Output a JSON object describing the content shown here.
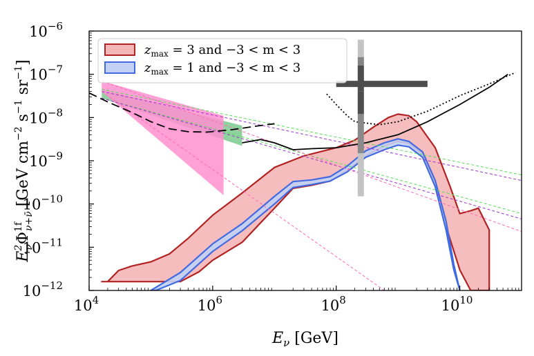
{
  "chart_data": {
    "type": "area",
    "title": "",
    "xlabel": "E_ν [GeV]",
    "ylabel": "E_ν² Φ^1f_{ν+ν̄} [GeV cm⁻² s⁻¹ sr⁻¹]",
    "xscale": "log",
    "yscale": "log",
    "xlim": [
      10000.0,
      100000000000.0
    ],
    "ylim": [
      1e-12,
      1e-06
    ],
    "x_ticks": [
      {
        "value": 10000.0,
        "base": "10",
        "exp": "4"
      },
      {
        "value": 1000000.0,
        "base": "10",
        "exp": "6"
      },
      {
        "value": 100000000.0,
        "base": "10",
        "exp": "8"
      },
      {
        "value": 10000000000.0,
        "base": "10",
        "exp": "10"
      }
    ],
    "y_ticks": [
      {
        "value": 1e-12,
        "base": "10",
        "exp": "−12"
      },
      {
        "value": 1e-11,
        "base": "10",
        "exp": "−11"
      },
      {
        "value": 1e-10,
        "base": "10",
        "exp": "−10"
      },
      {
        "value": 1e-09,
        "base": "10",
        "exp": "−9"
      },
      {
        "value": 1e-08,
        "base": "10",
        "exp": "−8"
      },
      {
        "value": 1e-07,
        "base": "10",
        "exp": "−7"
      },
      {
        "value": 1e-06,
        "base": "10",
        "exp": "−6"
      }
    ],
    "legend_position": "top-left",
    "series": [
      {
        "name": "z_max = 3 and −3 < m < 3",
        "kind": "band",
        "fill": "#f4b6b6",
        "stroke": "#b22222",
        "legend": {
          "var": "z",
          "sub": "max",
          "text": " = 3 and −3 < m < 3"
        },
        "upper": [
          [
            16000.0,
            1.6e-12
          ],
          [
            20000.0,
            1.6e-12
          ],
          [
            30000.0,
            2.9e-12
          ],
          [
            50000.0,
            3.7e-12
          ],
          [
            100000.0,
            4.6e-12
          ],
          [
            200000.0,
            7e-12
          ],
          [
            400000.0,
            1.6e-11
          ],
          [
            1000000.0,
            5.5e-11
          ],
          [
            3000000.0,
            1.8e-10
          ],
          [
            10000000.0,
            7e-10
          ],
          [
            30000000.0,
            1.3e-09
          ],
          [
            100000000.0,
            2e-09
          ],
          [
            200000000.0,
            3e-09
          ],
          [
            400000000.0,
            6e-09
          ],
          [
            700000000.0,
            1e-08
          ],
          [
            1000000000.0,
            1.2e-08
          ],
          [
            1500000000.0,
            1.1e-08
          ],
          [
            2000000000.0,
            8e-09
          ],
          [
            4000000000.0,
            2e-09
          ],
          [
            7000000000.0,
            2.5e-10
          ],
          [
            10000000000.0,
            6e-11
          ],
          [
            15000000000.0,
            7e-11
          ],
          [
            20000000000.0,
            8e-11
          ],
          [
            30000000000.0,
            2.5e-11
          ],
          [
            30000000000.0,
            1e-12
          ]
        ],
        "lower": [
          [
            16000.0,
            1.6e-12
          ],
          [
            100000.0,
            1.6e-12
          ],
          [
            300000.0,
            1.6e-12
          ],
          [
            600000.0,
            2.7e-12
          ],
          [
            1000000.0,
            5e-12
          ],
          [
            3000000.0,
            1.3e-11
          ],
          [
            10000000.0,
            8e-11
          ],
          [
            20000000.0,
            2.3e-10
          ],
          [
            40000000.0,
            2.7e-10
          ],
          [
            80000000.0,
            3.4e-10
          ],
          [
            150000000.0,
            6e-10
          ],
          [
            300000000.0,
            1.3e-09
          ],
          [
            600000000.0,
            2.2e-09
          ],
          [
            1000000000.0,
            2.8e-09
          ],
          [
            1500000000.0,
            2.5e-09
          ],
          [
            2500000000.0,
            1.4e-09
          ],
          [
            4000000000.0,
            3e-10
          ],
          [
            6000000000.0,
            3e-11
          ],
          [
            10000000000.0,
            3e-12
          ],
          [
            15000000000.0,
            1e-12
          ],
          [
            20000000000.0,
            1e-12
          ]
        ]
      },
      {
        "name": "z_max = 1 and −3 < m < 3",
        "kind": "band",
        "fill": "#c3d2f4",
        "stroke": "#4169e1",
        "legend": {
          "var": "z",
          "sub": "max",
          "text": " = 1 and −3 < m < 3"
        },
        "upper": [
          [
            100000.0,
            1e-12
          ],
          [
            300000.0,
            2.6e-12
          ],
          [
            1000000.0,
            1.2e-11
          ],
          [
            3000000.0,
            3.5e-11
          ],
          [
            10000000.0,
            1.5e-10
          ],
          [
            20000000.0,
            3.3e-10
          ],
          [
            40000000.0,
            3.6e-10
          ],
          [
            80000000.0,
            4.3e-10
          ],
          [
            150000000.0,
            7.5e-10
          ],
          [
            300000000.0,
            1.7e-09
          ],
          [
            600000000.0,
            2.6e-09
          ],
          [
            1000000000.0,
            3.2e-09
          ],
          [
            1500000000.0,
            2.8e-09
          ],
          [
            2500000000.0,
            1.6e-09
          ],
          [
            4000000000.0,
            3.5e-10
          ],
          [
            6000000000.0,
            4e-11
          ],
          [
            8000000000.0,
            4e-12
          ],
          [
            10000000000.0,
            1e-12
          ]
        ],
        "lower": [
          [
            120000.0,
            1e-12
          ],
          [
            300000.0,
            1.7e-12
          ],
          [
            1000000.0,
            8e-12
          ],
          [
            3000000.0,
            2.4e-11
          ],
          [
            10000000.0,
            1e-10
          ],
          [
            20000000.0,
            2.4e-10
          ],
          [
            40000000.0,
            2.8e-10
          ],
          [
            80000000.0,
            3.4e-10
          ],
          [
            150000000.0,
            5.5e-10
          ],
          [
            300000000.0,
            1.2e-09
          ],
          [
            600000000.0,
            1.8e-09
          ],
          [
            1000000000.0,
            2.3e-09
          ],
          [
            1500000000.0,
            2.1e-09
          ],
          [
            2500000000.0,
            1.2e-09
          ],
          [
            4000000000.0,
            2.5e-10
          ],
          [
            6000000000.0,
            2.5e-11
          ],
          [
            8000000000.0,
            3e-12
          ],
          [
            10000000000.0,
            1e-12
          ]
        ]
      },
      {
        "name": "green flux band",
        "kind": "band",
        "fill": "#7cc98f",
        "upper": [
          [
            16000.0,
            4.5e-08
          ],
          [
            3000000.0,
            6.5e-09
          ]
        ],
        "lower": [
          [
            16000.0,
            2.8e-08
          ],
          [
            3000000.0,
            2.2e-09
          ]
        ]
      },
      {
        "name": "pink flux band",
        "kind": "band",
        "fill": "#ff8fd0",
        "upper": [
          [
            16000.0,
            7e-08
          ],
          [
            1500000.0,
            1.1e-08
          ]
        ],
        "lower": [
          [
            16000.0,
            4e-08
          ],
          [
            1500000.0,
            1.6e-10
          ]
        ]
      },
      {
        "name": "green extrapolation upper",
        "kind": "line",
        "dash": "4,3",
        "stroke": "#55dd55",
        "points": [
          [
            16000.0,
            4.5e-08
          ],
          [
            100000000000.0,
            4.7e-10
          ]
        ]
      },
      {
        "name": "green extrapolation lower",
        "kind": "line",
        "dash": "4,3",
        "stroke": "#55dd55",
        "points": [
          [
            16000.0,
            2.8e-08
          ],
          [
            100000000000.0,
            6e-11
          ]
        ]
      },
      {
        "name": "purple extrapolation upper",
        "kind": "line",
        "dash": "4,3",
        "stroke": "#9932cc",
        "points": [
          [
            16000.0,
            4e-08
          ],
          [
            100000000000.0,
            3.5e-10
          ]
        ]
      },
      {
        "name": "purple extrapolation lower",
        "kind": "line",
        "dash": "4,3",
        "stroke": "#9932cc",
        "points": [
          [
            16000.0,
            2.8e-08
          ],
          [
            100000000000.0,
            4.5e-11
          ]
        ]
      },
      {
        "name": "pink extrapolation upper",
        "kind": "line",
        "dash": "4,3",
        "stroke": "#ff69b4",
        "points": [
          [
            16000.0,
            7e-08
          ],
          [
            100000000000.0,
            2.3e-11
          ]
        ]
      },
      {
        "name": "pink extrapolation lower",
        "kind": "line",
        "dash": "4,3",
        "stroke": "#ff69b4",
        "points": [
          [
            16000.0,
            4e-08
          ],
          [
            600000000.0,
            1e-12
          ]
        ]
      },
      {
        "name": "dashed black sensitivity",
        "kind": "line",
        "dash": "12,6",
        "stroke": "#000000",
        "points": [
          [
            10000.0,
            3.7e-08
          ],
          [
            20000.0,
            2.3e-08
          ],
          [
            50000.0,
            1.3e-08
          ],
          [
            100000.0,
            8e-09
          ],
          [
            200000.0,
            5.5e-09
          ],
          [
            400000.0,
            4.7e-09
          ],
          [
            800000.0,
            4.6e-09
          ],
          [
            2000000.0,
            5.2e-09
          ],
          [
            5000000.0,
            6.3e-09
          ],
          [
            10000000.0,
            7.2e-09
          ]
        ]
      },
      {
        "name": "solid black sensitivity",
        "kind": "line",
        "dash": "",
        "stroke": "#000000",
        "points": [
          [
            3000000.0,
            2.6e-09
          ],
          [
            6000000.0,
            3.1e-09
          ],
          [
            10000000.0,
            2.6e-09
          ],
          [
            20000000.0,
            1.8e-09
          ],
          [
            40000000.0,
            1.9e-09
          ],
          [
            100000000.0,
            2e-09
          ],
          [
            300000000.0,
            2.6e-09
          ],
          [
            1000000000.0,
            4e-09
          ],
          [
            3000000000.0,
            8e-09
          ],
          [
            10000000000.0,
            2e-08
          ],
          [
            30000000000.0,
            5e-08
          ],
          [
            60000000000.0,
            1e-07
          ]
        ]
      },
      {
        "name": "dotted black sensitivity",
        "kind": "line",
        "dash": "2,3",
        "stroke": "#000000",
        "points": [
          [
            70000000.0,
            3.5e-08
          ],
          [
            100000000.0,
            2e-08
          ],
          [
            150000000.0,
            1.1e-08
          ],
          [
            200000000.0,
            8e-09
          ],
          [
            500000000.0,
            6.8e-09
          ],
          [
            1000000000.0,
            8e-09
          ],
          [
            3000000000.0,
            1.4e-08
          ],
          [
            10000000000.0,
            3.2e-08
          ],
          [
            30000000000.0,
            6e-08
          ],
          [
            80000000000.0,
            1.1e-07
          ]
        ]
      }
    ],
    "cross_horizontal": {
      "x0": 100000000.0,
      "x1": 3000000000.0,
      "y": 6e-08,
      "color": "#4d4d4d"
    },
    "cross_vertical": [
      {
        "x": 250000000.0,
        "y0": 2.5e-07,
        "y1": 6.3e-07,
        "color": "#c4c4c4"
      },
      {
        "x": 250000000.0,
        "y0": 1.6e-07,
        "y1": 2.5e-07,
        "color": "#858585"
      },
      {
        "x": 250000000.0,
        "y0": 4e-08,
        "y1": 1.6e-07,
        "color": "#4d4d4d"
      },
      {
        "x": 250000000.0,
        "y0": 1.2e-08,
        "y1": 4e-08,
        "color": "#4d4d4d"
      },
      {
        "x": 250000000.0,
        "y0": 1.5e-09,
        "y1": 1.2e-08,
        "color": "#8a8a8a"
      },
      {
        "x": 250000000.0,
        "y0": 1.5e-10,
        "y1": 1.5e-09,
        "color": "#c4c4c4"
      }
    ]
  }
}
